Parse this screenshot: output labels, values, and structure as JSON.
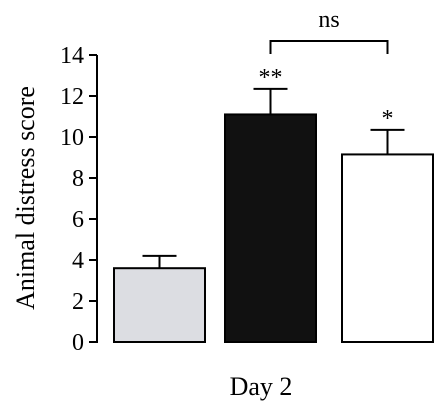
{
  "chart_data": {
    "type": "bar",
    "xlabel": "Day 2",
    "ylabel": "Animal distress score",
    "ylim": [
      0,
      14
    ],
    "yticks": [
      0,
      2,
      4,
      6,
      8,
      10,
      12,
      14
    ],
    "bars": [
      {
        "value": 3.6,
        "error": 0.6,
        "color": "#dcdde2",
        "annotation": ""
      },
      {
        "value": 11.1,
        "error": 1.25,
        "color": "#111111",
        "annotation": "**"
      },
      {
        "value": 9.15,
        "error": 1.2,
        "color": "#ffffff",
        "annotation": "*"
      }
    ],
    "comparison": {
      "from_bar": 1,
      "to_bar": 2,
      "label": "ns"
    },
    "grid": false,
    "legend": "none"
  }
}
